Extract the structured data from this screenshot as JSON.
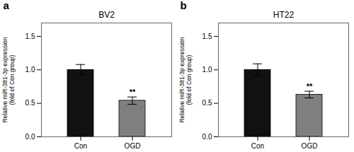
{
  "chart_data": [
    {
      "type": "bar",
      "title": "BV2",
      "panel_label": "a",
      "ylabel": "Relative miR-381-3p expression\n(fold of Con group)",
      "categories": [
        "Con",
        "OGD"
      ],
      "values": [
        1.0,
        0.54
      ],
      "errors": [
        0.08,
        0.055
      ],
      "colors": [
        "#111111",
        "#7f7f7f"
      ],
      "significance": [
        null,
        "**"
      ],
      "ylim": [
        0,
        1.7
      ],
      "yticks": [
        {
          "value": 0.0,
          "label": "0.0"
        },
        0.5,
        {
          "value": 1.0,
          "label": "1.0"
        },
        1.5
      ],
      "grid": false
    },
    {
      "type": "bar",
      "title": "HT22",
      "panel_label": "b",
      "ylabel": "Relative miR-381-3p expression\n(fold of Con group)",
      "categories": [
        "Con",
        "OGD"
      ],
      "values": [
        1.0,
        0.63
      ],
      "errors": [
        0.09,
        0.05
      ],
      "colors": [
        "#111111",
        "#7f7f7f"
      ],
      "significance": [
        null,
        "**"
      ],
      "ylim": [
        0,
        1.7
      ],
      "yticks": [
        {
          "value": 0.0,
          "label": "0.0"
        },
        0.5,
        {
          "value": 1.0,
          "label": "1.0"
        },
        1.5
      ],
      "grid": false
    }
  ]
}
